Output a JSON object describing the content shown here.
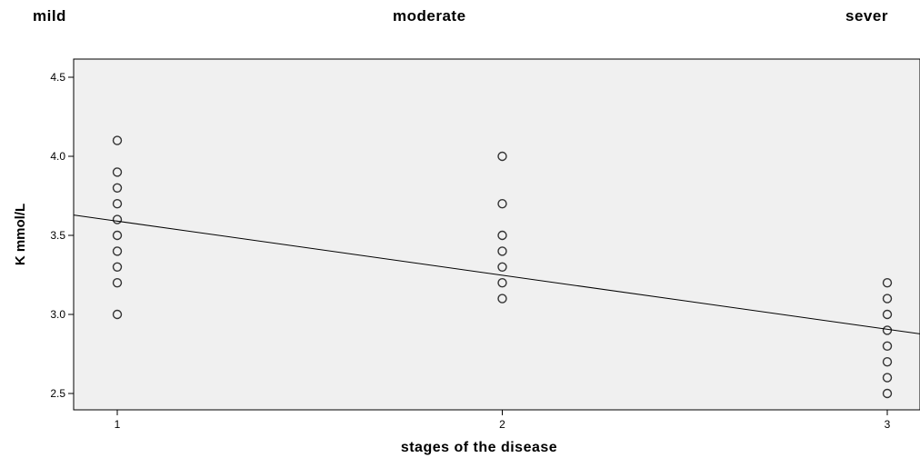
{
  "stage_labels": [
    "mild",
    "moderate",
    "sever"
  ],
  "chart_data": {
    "type": "scatter",
    "title": "",
    "xlabel": "stages of the disease",
    "ylabel": "K mmol/L",
    "xlim": [
      0.9,
      3.1
    ],
    "ylim": [
      2.38,
      4.6
    ],
    "xticks": [
      1,
      2,
      3
    ],
    "xtick_labels": [
      "1",
      "2",
      "3"
    ],
    "yticks": [
      2.5,
      3.0,
      3.5,
      4.0,
      4.5
    ],
    "ytick_labels": [
      "2.5",
      "3.0",
      "3.5",
      "4.0",
      "4.5"
    ],
    "grid": false,
    "plot_background": "#f0f0f0",
    "marker": "open-circle",
    "marker_color": "#333333",
    "series": [
      {
        "points": [
          {
            "x": 1,
            "y": 4.1
          },
          {
            "x": 1,
            "y": 3.9
          },
          {
            "x": 1,
            "y": 3.8
          },
          {
            "x": 1,
            "y": 3.7
          },
          {
            "x": 1,
            "y": 3.6
          },
          {
            "x": 1,
            "y": 3.5
          },
          {
            "x": 1,
            "y": 3.4
          },
          {
            "x": 1,
            "y": 3.3
          },
          {
            "x": 1,
            "y": 3.2
          },
          {
            "x": 1,
            "y": 3.0
          },
          {
            "x": 2,
            "y": 4.0
          },
          {
            "x": 2,
            "y": 3.7
          },
          {
            "x": 2,
            "y": 3.5
          },
          {
            "x": 2,
            "y": 3.4
          },
          {
            "x": 2,
            "y": 3.3
          },
          {
            "x": 2,
            "y": 3.2
          },
          {
            "x": 2,
            "y": 3.1
          },
          {
            "x": 3,
            "y": 3.2
          },
          {
            "x": 3,
            "y": 3.1
          },
          {
            "x": 3,
            "y": 3.0
          },
          {
            "x": 3,
            "y": 2.9
          },
          {
            "x": 3,
            "y": 2.8
          },
          {
            "x": 3,
            "y": 2.7
          },
          {
            "x": 3,
            "y": 2.6
          },
          {
            "x": 3,
            "y": 2.5
          }
        ]
      }
    ],
    "fit_line": {
      "type": "linear",
      "intercept": 3.932,
      "slope": -0.342
    }
  }
}
